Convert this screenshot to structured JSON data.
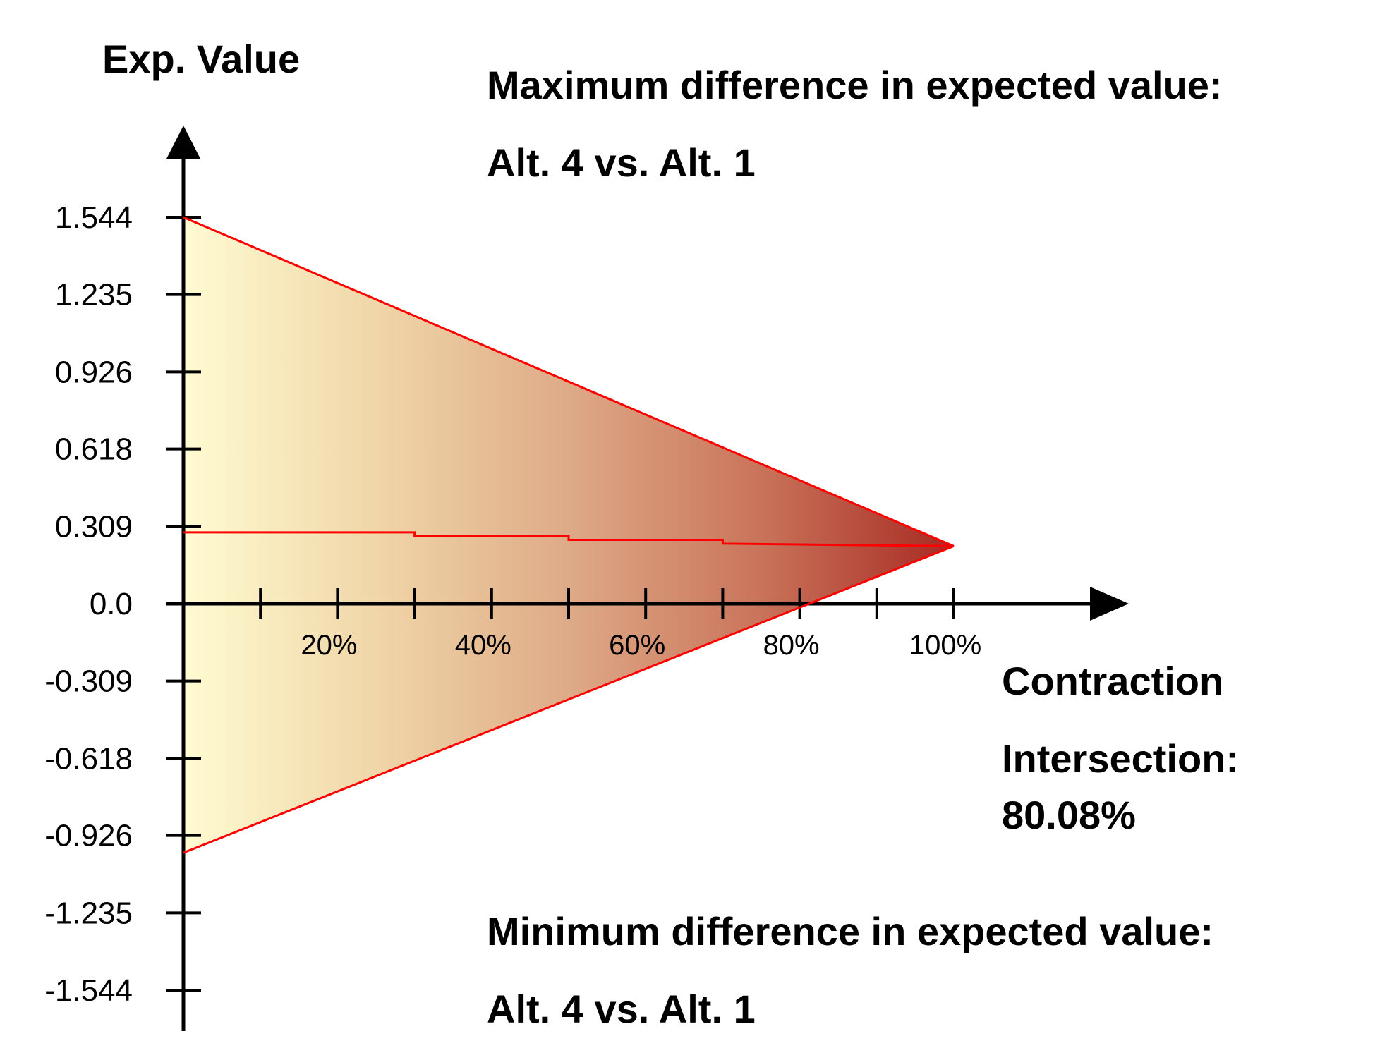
{
  "chart_data": {
    "type": "area",
    "ylabel": "Exp. Value",
    "xlabel": "Contraction",
    "y_ticks": [
      "1.544",
      "1.235",
      "0.926",
      "0.618",
      "0.309",
      "0.0",
      "-0.309",
      "-0.618",
      "-0.926",
      "-1.235",
      "-1.544"
    ],
    "y_range": [
      -1.544,
      1.544
    ],
    "x_range": [
      0,
      100
    ],
    "x_ticks": [
      10,
      20,
      30,
      40,
      50,
      60,
      70,
      80,
      90,
      100
    ],
    "x_tick_labels": [
      {
        "x": 20,
        "label": "20%"
      },
      {
        "x": 40,
        "label": "40%"
      },
      {
        "x": 60,
        "label": "60%"
      },
      {
        "x": 80,
        "label": "80%"
      },
      {
        "x": 100,
        "label": "100%"
      }
    ],
    "max_line": {
      "x": [
        0,
        100
      ],
      "y": [
        1.544,
        0.23
      ]
    },
    "min_line": {
      "x": [
        0,
        100
      ],
      "y": [
        -0.995,
        0.23
      ]
    },
    "mid_line": {
      "x": [
        0,
        30,
        30,
        50,
        50,
        70,
        70,
        100
      ],
      "y": [
        0.285,
        0.285,
        0.27,
        0.27,
        0.255,
        0.255,
        0.24,
        0.23
      ]
    },
    "fill_colors": [
      "#fffbd2",
      "#f0d6a8",
      "#deaa87",
      "#c9735a",
      "#a72a23"
    ],
    "line_color": "#ff0000",
    "grid": false,
    "legend": "none",
    "annotations": {
      "max_heading": "Maximum difference in expected value:",
      "max_pair": "Alt. 4 vs. Alt. 1",
      "min_heading": "Minimum difference in expected value:",
      "min_pair": "Alt. 4 vs. Alt. 1",
      "intersection_label": "Intersection:",
      "intersection_value": "80.08%"
    }
  }
}
